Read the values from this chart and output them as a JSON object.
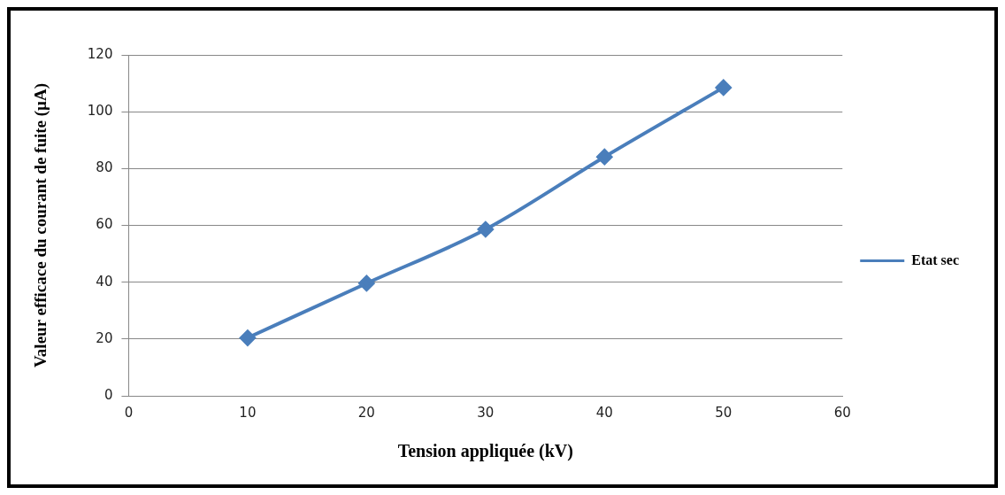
{
  "chart_data": {
    "type": "line",
    "xlabel": "Tension appliquée (kV)",
    "ylabel": "Valeur efficace du courant de fuite (µA)",
    "x": [
      10,
      20,
      30,
      40,
      50
    ],
    "series": [
      {
        "name": "Etat sec",
        "color": "#4a7ebb",
        "values": [
          20.4,
          39.6,
          58.6,
          84.1,
          108.5
        ]
      }
    ],
    "xlim": [
      0,
      60
    ],
    "xticks": [
      0,
      10,
      20,
      30,
      40,
      50,
      60
    ],
    "ylim": [
      0,
      120
    ],
    "yticks": [
      0,
      20,
      40,
      60,
      80,
      100,
      120
    ],
    "grid": "y",
    "legend": "right",
    "marker": "diamond",
    "line_style": "solid"
  }
}
